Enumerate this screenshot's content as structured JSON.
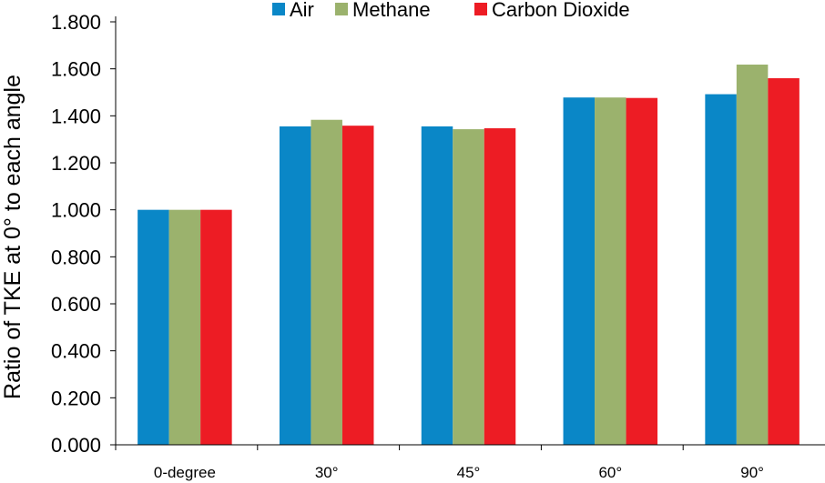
{
  "chart_data": {
    "type": "bar",
    "ylabel": "Ratio of TKE at 0° to each angle",
    "xlabel": "",
    "ylim": [
      0,
      1.8
    ],
    "ytick_step": 0.2,
    "ytick_labels": [
      "0.000",
      "0.200",
      "0.400",
      "0.600",
      "0.800",
      "1.000",
      "1.200",
      "1.400",
      "1.600",
      "1.800"
    ],
    "grid": false,
    "legend_position": "top",
    "categories": [
      "0-degree",
      "30°",
      "45°",
      "60°",
      "90°"
    ],
    "series": [
      {
        "name": "Air",
        "color": "#0a87c7",
        "values": [
          1.0,
          1.355,
          1.355,
          1.478,
          1.492
        ]
      },
      {
        "name": "Methane",
        "color": "#9bb26d",
        "values": [
          1.0,
          1.383,
          1.343,
          1.478,
          1.618
        ]
      },
      {
        "name": "Carbon Dioxide",
        "color": "#ed1c24",
        "values": [
          1.0,
          1.358,
          1.347,
          1.476,
          1.56
        ]
      }
    ]
  }
}
